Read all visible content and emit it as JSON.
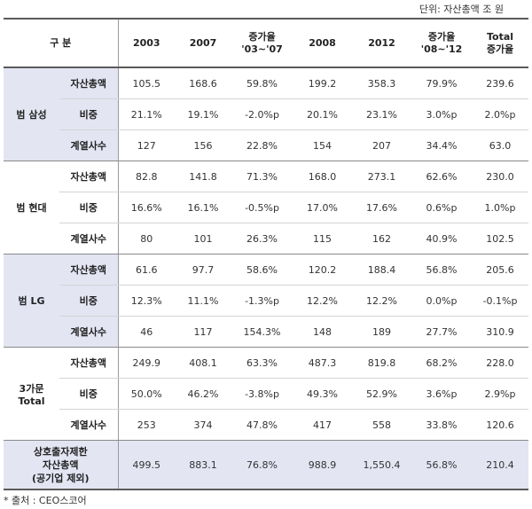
{
  "unit_note": "단위: 자산총액 조 원",
  "source_note": "* 출처 : CEO스코어",
  "header": {
    "label": "구    분",
    "columns": [
      "2003",
      "2007",
      "증가율\n'03~'07",
      "2008",
      "2012",
      "증가율\n'08~'12",
      "Total\n증가율"
    ]
  },
  "groups": [
    {
      "name": "범 삼성",
      "rows": [
        {
          "metric": "자산총액",
          "values": [
            "105.5",
            "168.6",
            "59.8%",
            "199.2",
            "358.3",
            "79.9%",
            "239.6"
          ]
        },
        {
          "metric": "비중",
          "values": [
            "21.1%",
            "19.1%",
            "-2.0%p",
            "20.1%",
            "23.1%",
            "3.0%p",
            "2.0%p"
          ]
        },
        {
          "metric": "계열사수",
          "values": [
            "127",
            "156",
            "22.8%",
            "154",
            "207",
            "34.4%",
            "63.0"
          ]
        }
      ]
    },
    {
      "name": "범 현대",
      "rows": [
        {
          "metric": "자산총액",
          "values": [
            "82.8",
            "141.8",
            "71.3%",
            "168.0",
            "273.1",
            "62.6%",
            "230.0"
          ]
        },
        {
          "metric": "비중",
          "values": [
            "16.6%",
            "16.1%",
            "-0.5%p",
            "17.0%",
            "17.6%",
            "0.6%p",
            "1.0%p"
          ]
        },
        {
          "metric": "계열사수",
          "values": [
            "80",
            "101",
            "26.3%",
            "115",
            "162",
            "40.9%",
            "102.5"
          ]
        }
      ]
    },
    {
      "name": "범 LG",
      "rows": [
        {
          "metric": "자산총액",
          "values": [
            "61.6",
            "97.7",
            "58.6%",
            "120.2",
            "188.4",
            "56.8%",
            "205.6"
          ]
        },
        {
          "metric": "비중",
          "values": [
            "12.3%",
            "11.1%",
            "-1.3%p",
            "12.2%",
            "12.2%",
            "0.0%p",
            "-0.1%p"
          ]
        },
        {
          "metric": "계열사수",
          "values": [
            "46",
            "117",
            "154.3%",
            "148",
            "189",
            "27.7%",
            "310.9"
          ]
        }
      ]
    },
    {
      "name": "3가문\nTotal",
      "rows": [
        {
          "metric": "자산총액",
          "values": [
            "249.9",
            "408.1",
            "63.3%",
            "487.3",
            "819.8",
            "68.2%",
            "228.0"
          ]
        },
        {
          "metric": "비중",
          "values": [
            "50.0%",
            "46.2%",
            "-3.8%p",
            "49.3%",
            "52.9%",
            "3.6%p",
            "2.9%p"
          ]
        },
        {
          "metric": "계열사수",
          "values": [
            "253",
            "374",
            "47.8%",
            "417",
            "558",
            "33.8%",
            "120.6"
          ]
        }
      ]
    }
  ],
  "total": {
    "label": "상호출자제한\n자산총액\n(공기업 제외)",
    "values": [
      "499.5",
      "883.1",
      "76.8%",
      "988.9",
      "1,550.4",
      "56.8%",
      "210.4"
    ]
  }
}
